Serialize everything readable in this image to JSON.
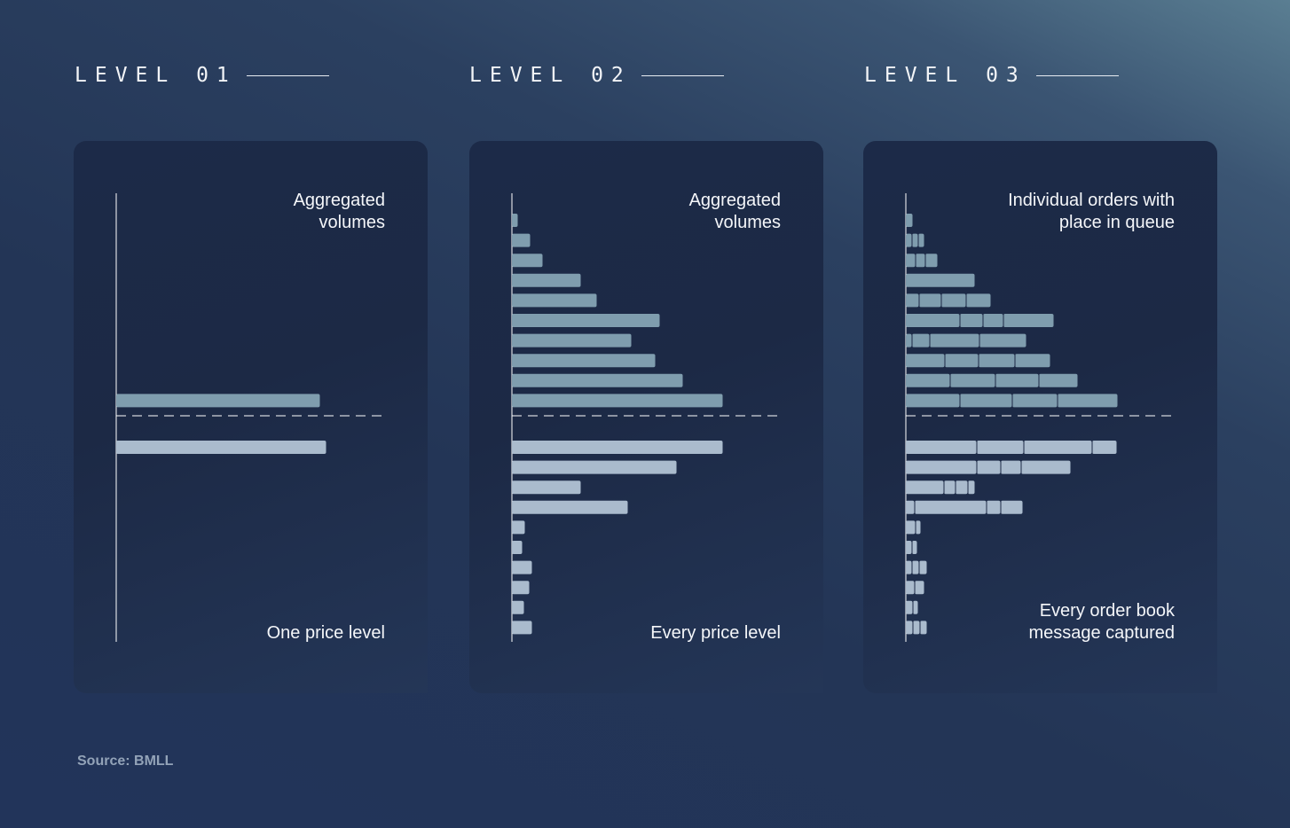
{
  "colors": {
    "ask_bar": "#7f9dae",
    "bid_bar": "#aabbcd",
    "axis": "#ffffff",
    "divider": "#1c2945"
  },
  "levels": [
    {
      "title": "LEVEL 01",
      "top_label": [
        "Aggregated",
        "volumes"
      ],
      "bottom_label": [
        "One price level"
      ],
      "asks": [
        {
          "price_index": 9,
          "orders": [
            23
          ]
        }
      ],
      "bids": [
        {
          "price_index": 0,
          "orders": [
            23.7
          ]
        }
      ]
    },
    {
      "title": "LEVEL 02",
      "top_label": [
        "Aggregated",
        "volumes"
      ],
      "bottom_label": [
        "Every price level"
      ],
      "asks": [
        {
          "price_index": 0,
          "orders": [
            0.7
          ]
        },
        {
          "price_index": 1,
          "orders": [
            2.1
          ]
        },
        {
          "price_index": 2,
          "orders": [
            3.5
          ]
        },
        {
          "price_index": 3,
          "orders": [
            7.8
          ]
        },
        {
          "price_index": 4,
          "orders": [
            9.6
          ]
        },
        {
          "price_index": 5,
          "orders": [
            16.7
          ]
        },
        {
          "price_index": 6,
          "orders": [
            13.5
          ]
        },
        {
          "price_index": 7,
          "orders": [
            16.2
          ]
        },
        {
          "price_index": 8,
          "orders": [
            19.3
          ]
        },
        {
          "price_index": 9,
          "orders": [
            23.8
          ]
        }
      ],
      "bids": [
        {
          "price_index": 0,
          "orders": [
            23.8
          ]
        },
        {
          "price_index": 1,
          "orders": [
            18.6
          ]
        },
        {
          "price_index": 2,
          "orders": [
            7.8
          ]
        },
        {
          "price_index": 3,
          "orders": [
            13.1
          ]
        },
        {
          "price_index": 4,
          "orders": [
            1.5
          ]
        },
        {
          "price_index": 5,
          "orders": [
            1.2
          ]
        },
        {
          "price_index": 6,
          "orders": [
            2.3
          ]
        },
        {
          "price_index": 7,
          "orders": [
            2.0
          ]
        },
        {
          "price_index": 8,
          "orders": [
            1.4
          ]
        },
        {
          "price_index": 9,
          "orders": [
            2.3
          ]
        }
      ]
    },
    {
      "title": "LEVEL 03",
      "top_label": [
        "Individual orders with",
        "place in queue"
      ],
      "bottom_label": [
        "Every order book",
        "message captured"
      ],
      "asks": [
        {
          "price_index": 0,
          "orders": [
            0.8
          ]
        },
        {
          "price_index": 1,
          "orders": [
            0.7,
            0.7,
            0.7
          ]
        },
        {
          "price_index": 2,
          "orders": [
            1.1,
            1.1,
            1.4
          ]
        },
        {
          "price_index": 3,
          "orders": [
            7.8
          ]
        },
        {
          "price_index": 4,
          "orders": [
            1.5,
            2.5,
            2.8,
            2.8
          ]
        },
        {
          "price_index": 5,
          "orders": [
            6.1,
            2.6,
            2.3,
            5.7
          ]
        },
        {
          "price_index": 6,
          "orders": [
            0.7,
            2.0,
            5.6,
            5.3
          ]
        },
        {
          "price_index": 7,
          "orders": [
            4.4,
            3.8,
            4.1,
            4.0
          ]
        },
        {
          "price_index": 8,
          "orders": [
            5.0,
            5.1,
            4.9,
            4.4
          ]
        },
        {
          "price_index": 9,
          "orders": [
            6.1,
            5.9,
            5.1,
            6.8
          ]
        }
      ],
      "bids": [
        {
          "price_index": 0,
          "orders": [
            8.0,
            5.3,
            7.7,
            2.8
          ]
        },
        {
          "price_index": 1,
          "orders": [
            8.0,
            2.7,
            2.3,
            5.6
          ]
        },
        {
          "price_index": 2,
          "orders": [
            4.3,
            1.3,
            1.4,
            0.8
          ]
        },
        {
          "price_index": 3,
          "orders": [
            1.0,
            8.1,
            1.6,
            2.5
          ]
        },
        {
          "price_index": 4,
          "orders": [
            1.1,
            0.6
          ]
        },
        {
          "price_index": 5,
          "orders": [
            0.7,
            0.6
          ]
        },
        {
          "price_index": 6,
          "orders": [
            0.7,
            0.8,
            0.9
          ]
        },
        {
          "price_index": 7,
          "orders": [
            1.0,
            1.1
          ]
        },
        {
          "price_index": 8,
          "orders": [
            0.8,
            0.6
          ]
        },
        {
          "price_index": 9,
          "orders": [
            0.8,
            0.8,
            0.8
          ]
        }
      ]
    }
  ],
  "source": "Source: BMLL"
}
